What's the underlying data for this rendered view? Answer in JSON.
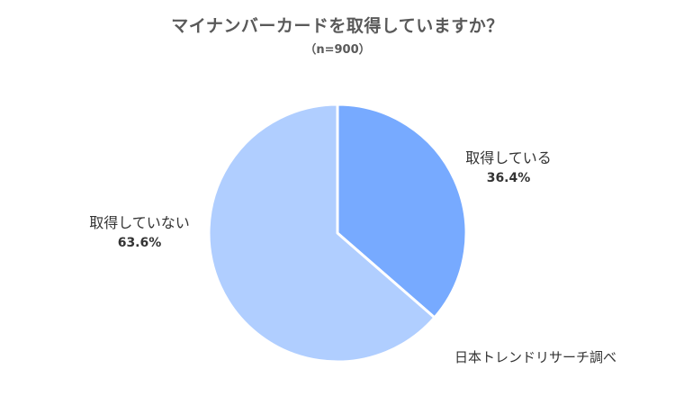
{
  "chart_data": {
    "type": "pie",
    "title": "マイナンバーカードを取得していますか？",
    "subtitle": "（n=900）",
    "slices": [
      {
        "label": "取得している",
        "value": 36.4,
        "value_label": "36.4%",
        "color": "#77AAFF"
      },
      {
        "label": "取得していない",
        "value": 63.6,
        "value_label": "63.6%",
        "color": "#B0CEFF"
      }
    ],
    "start_angle": "12 o'clock",
    "direction": "clockwise",
    "legend": "none",
    "slice_border_color": "#ffffff"
  },
  "source": "日本トレンドリサーチ調べ"
}
